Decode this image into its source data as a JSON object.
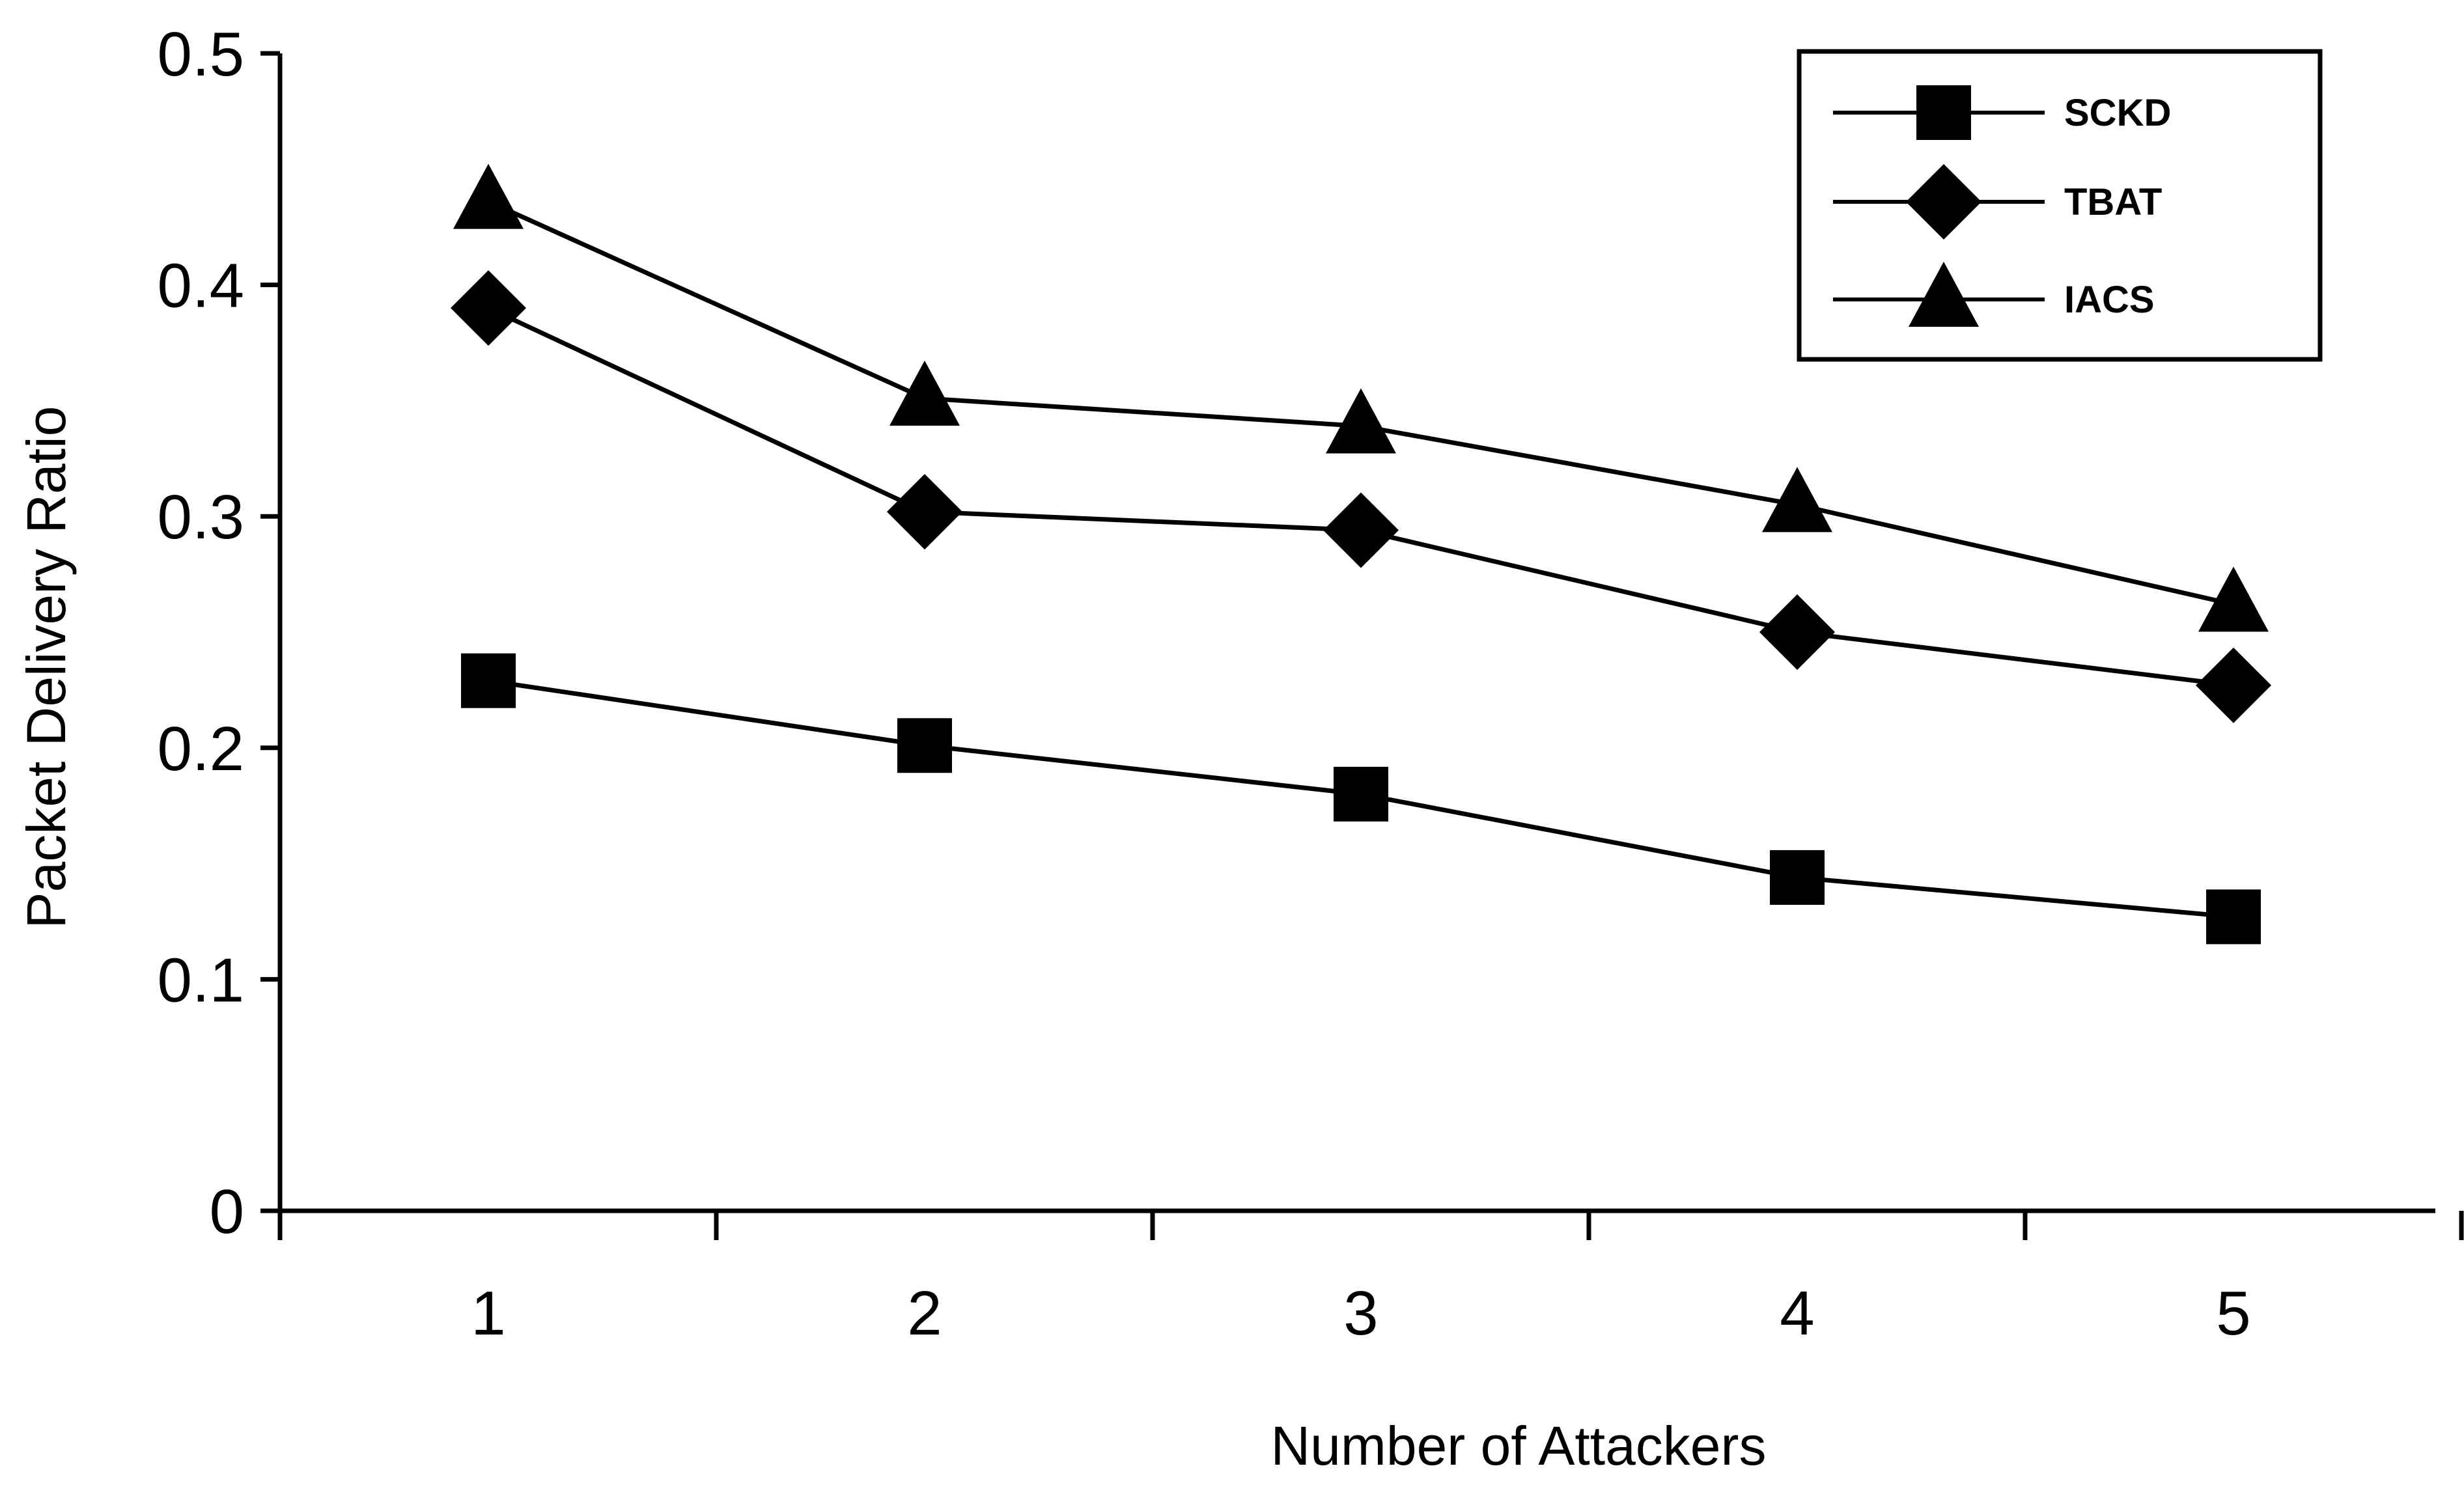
{
  "chart_data": {
    "type": "line",
    "title": "",
    "xlabel": "Number of Attackers",
    "ylabel": "Packet Delivery Ratio",
    "x": [
      1,
      2,
      3,
      4,
      5
    ],
    "x_tick_labels": [
      "1",
      "2",
      "3",
      "4",
      "5"
    ],
    "xlim": [
      0.52,
      5.5
    ],
    "ylim": [
      0,
      0.5
    ],
    "y_ticks": [
      0,
      0.1,
      0.2,
      0.3,
      0.4,
      0.5
    ],
    "y_tick_labels": [
      "0",
      "0.1",
      "0.2",
      "0.3",
      "0.4",
      "0.5"
    ],
    "grid": false,
    "legend_position": "top-right",
    "series": [
      {
        "name": "SCKD",
        "marker": "square",
        "values": [
          0.229,
          0.201,
          0.18,
          0.144,
          0.127
        ]
      },
      {
        "name": "TBAT",
        "marker": "diamond",
        "values": [
          0.39,
          0.302,
          0.294,
          0.25,
          0.227
        ]
      },
      {
        "name": "IACS",
        "marker": "triangle",
        "values": [
          0.436,
          0.351,
          0.339,
          0.305,
          0.262
        ]
      }
    ],
    "colors": {
      "line": "#000000",
      "marker": "#000000"
    }
  }
}
